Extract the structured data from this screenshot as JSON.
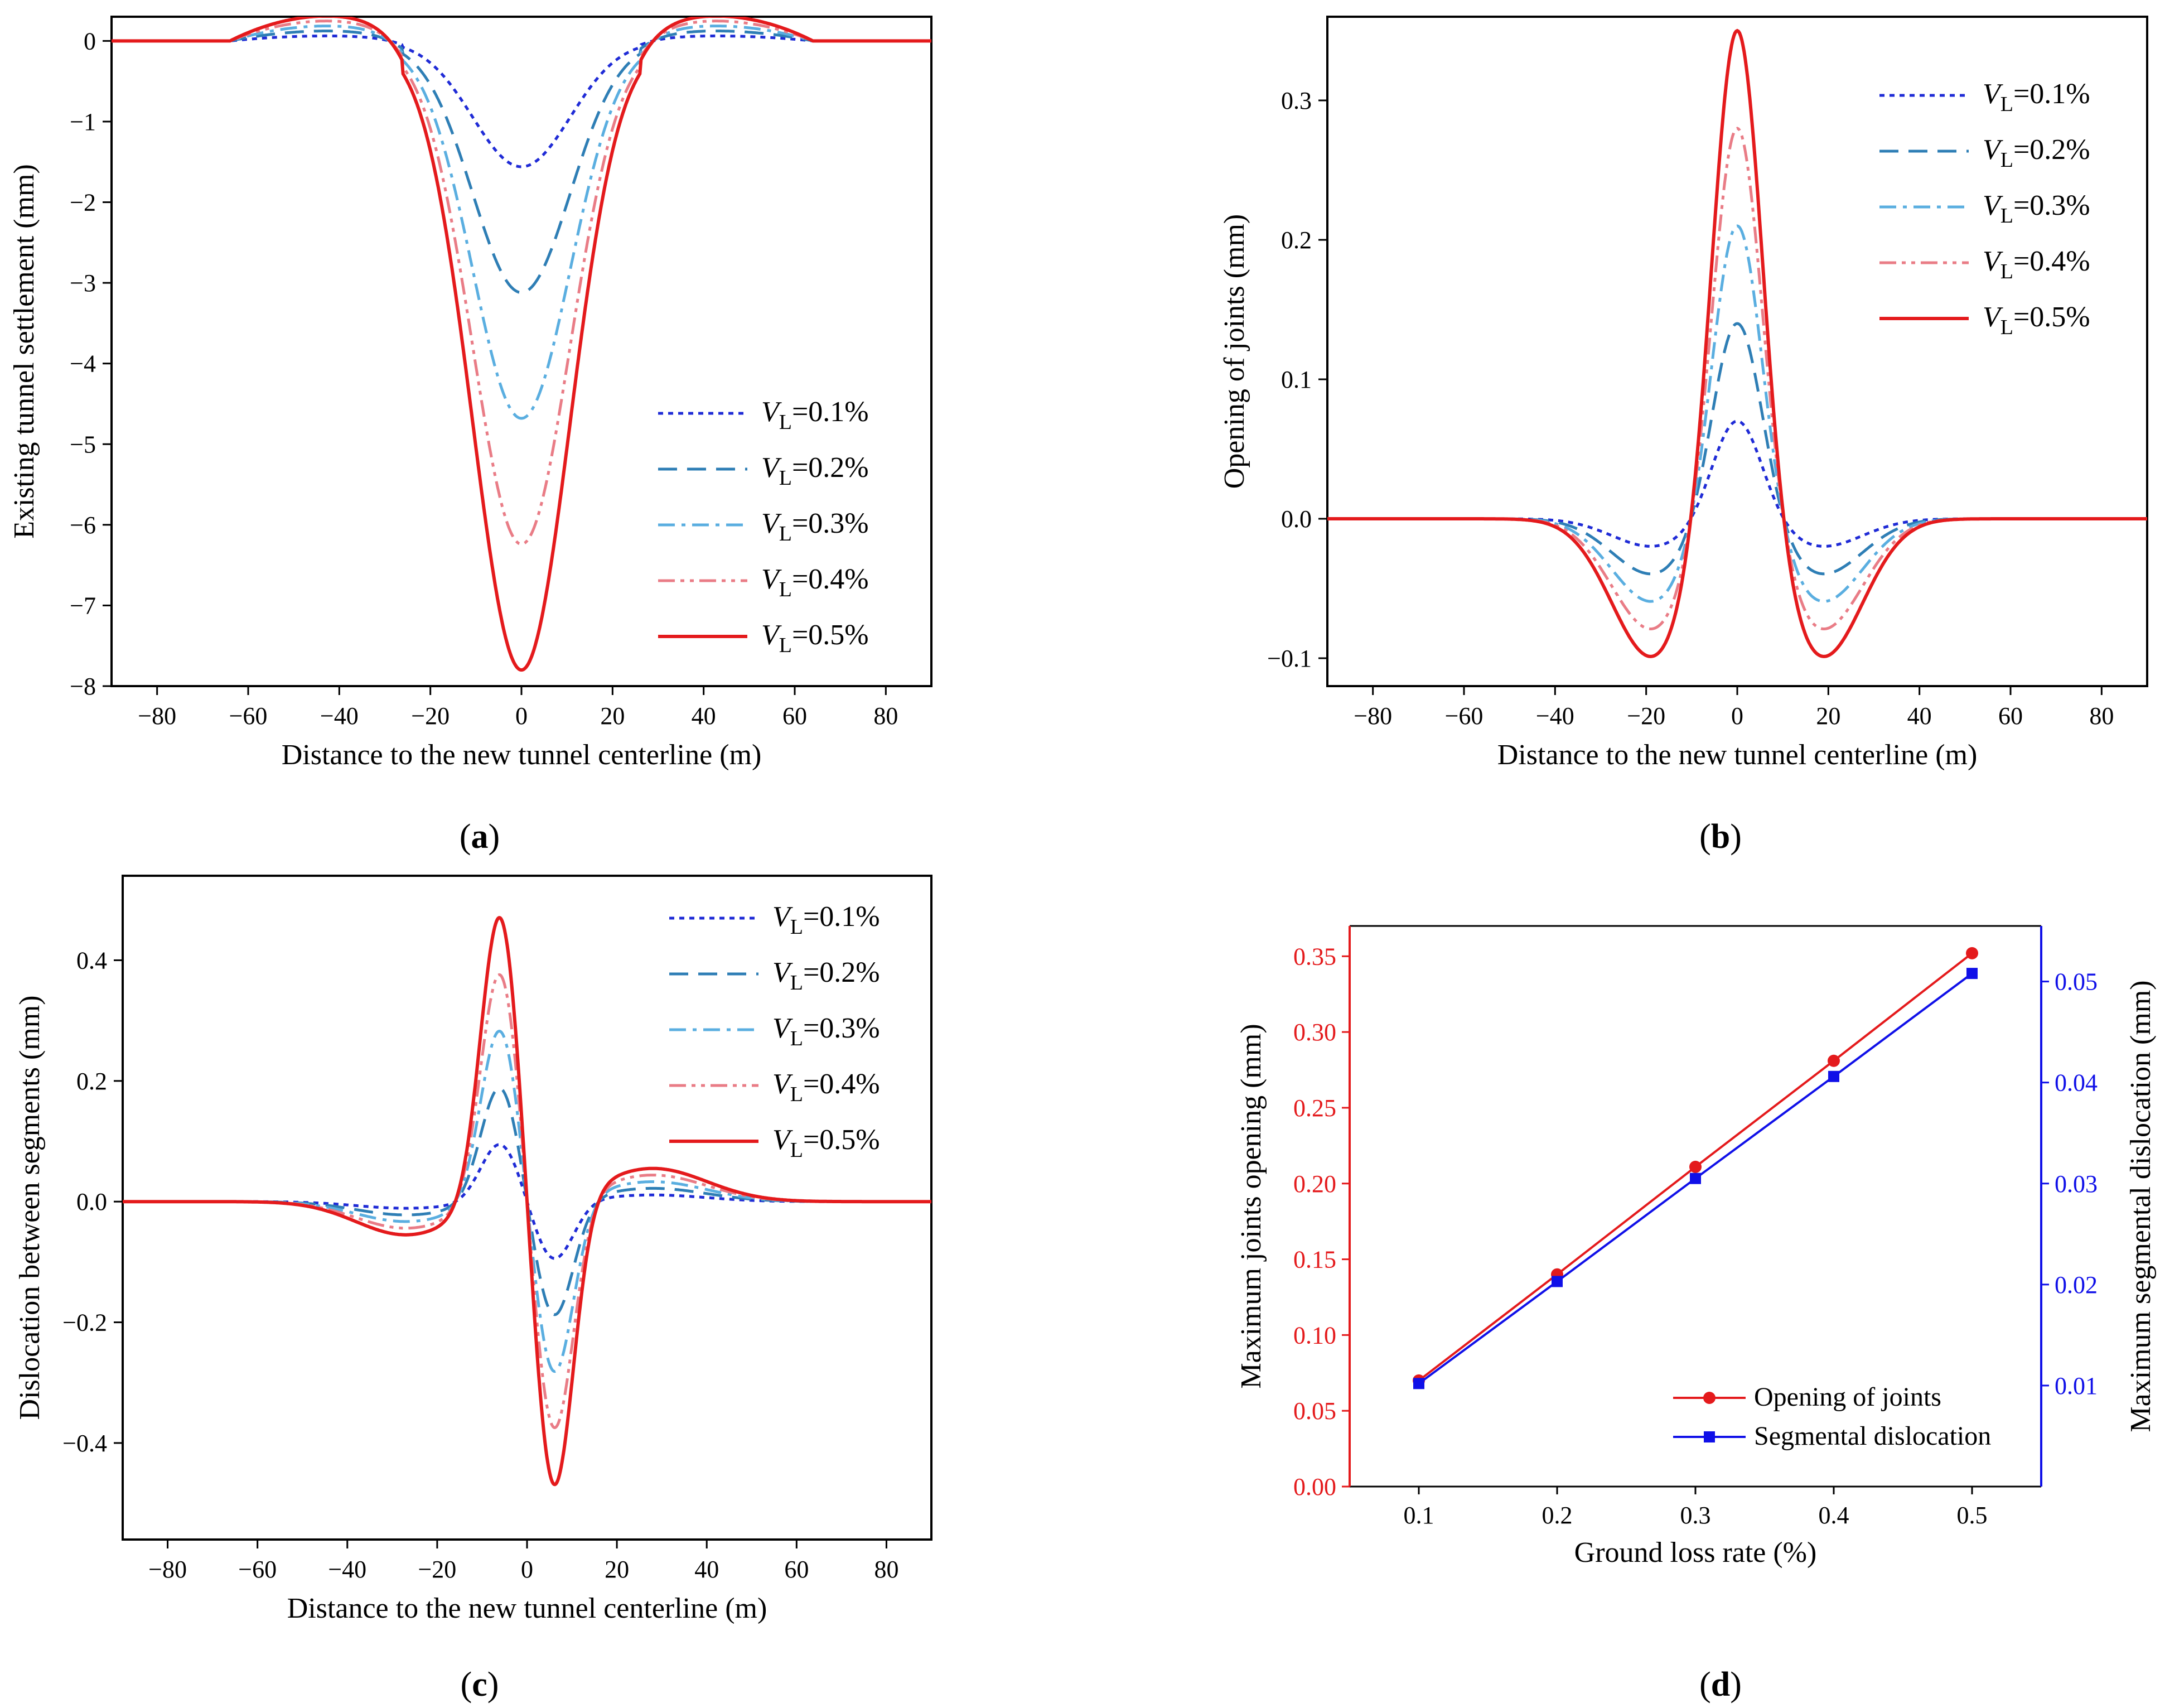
{
  "panel_labels": [
    "a",
    "b",
    "c",
    "d"
  ],
  "colors": {
    "v01": "#1f2bd6",
    "v02": "#2e7eb5",
    "v03": "#5aaee0",
    "v04": "#e97c86",
    "v05": "#e41a1c",
    "opening": "#e41a1c",
    "dislocation": "#1010e8"
  },
  "chart_data": [
    {
      "id": "a",
      "type": "line",
      "xlabel": "Distance to the new tunnel centerline (m)",
      "ylabel": "Existing tunnel settlement (mm)",
      "xlim": [
        -90,
        90
      ],
      "ylim": [
        -8,
        0.3
      ],
      "xticks": [
        -80,
        -60,
        -40,
        -20,
        0,
        20,
        40,
        60,
        80
      ],
      "yticks": [
        0,
        -1,
        -2,
        -3,
        -4,
        -5,
        -6,
        -7,
        -8
      ],
      "legend_position": "lower-right",
      "series": [
        {
          "name": "VL=0.1%",
          "legend_var": "V",
          "legend_sub": "L",
          "legend_val": "=0.1%",
          "style": "dot",
          "color_key": "v01",
          "peak": -1.56
        },
        {
          "name": "VL=0.2%",
          "legend_var": "V",
          "legend_sub": "L",
          "legend_val": "=0.2%",
          "style": "dash",
          "color_key": "v02",
          "peak": -3.12
        },
        {
          "name": "VL=0.3%",
          "legend_var": "V",
          "legend_sub": "L",
          "legend_val": "=0.3%",
          "style": "dashdot",
          "color_key": "v03",
          "peak": -4.68
        },
        {
          "name": "VL=0.4%",
          "legend_var": "V",
          "legend_sub": "L",
          "legend_val": "=0.4%",
          "style": "dashdotdot",
          "color_key": "v04",
          "peak": -6.24
        },
        {
          "name": "VL=0.5%",
          "legend_var": "V",
          "legend_sub": "L",
          "legend_val": "=0.5%",
          "style": "solid",
          "color_key": "v05",
          "peak": -7.8
        }
      ]
    },
    {
      "id": "b",
      "type": "line",
      "xlabel": "Distance to the new tunnel centerline (m)",
      "ylabel": "Opening of joints (mm)",
      "xlim": [
        -90,
        90
      ],
      "ylim": [
        -0.12,
        0.36
      ],
      "xticks": [
        -80,
        -60,
        -40,
        -20,
        0,
        20,
        40,
        60,
        80
      ],
      "yticks": [
        0.3,
        0.2,
        0.1,
        0.0,
        -0.1
      ],
      "ytick_labels": [
        "0.3",
        "0.2",
        "0.1",
        "0.0",
        "-0.1"
      ],
      "legend_position": "upper-right",
      "series": [
        {
          "name": "VL=0.1%",
          "legend_var": "V",
          "legend_sub": "L",
          "legend_val": "=0.1%",
          "style": "dot",
          "color_key": "v01",
          "peak": 0.07,
          "trough": -0.02
        },
        {
          "name": "VL=0.2%",
          "legend_var": "V",
          "legend_sub": "L",
          "legend_val": "=0.2%",
          "style": "dash",
          "color_key": "v02",
          "peak": 0.14,
          "trough": -0.04
        },
        {
          "name": "VL=0.3%",
          "legend_var": "V",
          "legend_sub": "L",
          "legend_val": "=0.3%",
          "style": "dashdot",
          "color_key": "v03",
          "peak": 0.21,
          "trough": -0.06
        },
        {
          "name": "VL=0.4%",
          "legend_var": "V",
          "legend_sub": "L",
          "legend_val": "=0.4%",
          "style": "dashdotdot",
          "color_key": "v04",
          "peak": 0.28,
          "trough": -0.08
        },
        {
          "name": "VL=0.5%",
          "legend_var": "V",
          "legend_sub": "L",
          "legend_val": "=0.5%",
          "style": "solid",
          "color_key": "v05",
          "peak": 0.35,
          "trough": -0.1
        }
      ]
    },
    {
      "id": "c",
      "type": "line",
      "xlabel": "Distance to the new tunnel centerline (m)",
      "ylabel": "Dislocation between segments (mm)",
      "xlim": [
        -90,
        90
      ],
      "ylim": [
        -0.56,
        0.54
      ],
      "xticks": [
        -80,
        -60,
        -40,
        -20,
        0,
        20,
        40,
        60,
        80
      ],
      "yticks": [
        0.4,
        0.2,
        0.0,
        -0.2,
        -0.4
      ],
      "ytick_labels": [
        "0.4",
        "0.2",
        "0.0",
        "-0.2",
        "-0.4"
      ],
      "legend_position": "upper-right",
      "series": [
        {
          "name": "VL=0.1%",
          "legend_var": "V",
          "legend_sub": "L",
          "legend_val": "=0.1%",
          "style": "dot",
          "color_key": "v01",
          "peak": 0.098,
          "side": 0.011
        },
        {
          "name": "VL=0.2%",
          "legend_var": "V",
          "legend_sub": "L",
          "legend_val": "=0.2%",
          "style": "dash",
          "color_key": "v02",
          "peak": 0.195,
          "side": 0.022
        },
        {
          "name": "VL=0.3%",
          "legend_var": "V",
          "legend_sub": "L",
          "legend_val": "=0.3%",
          "style": "dashdot",
          "color_key": "v03",
          "peak": 0.293,
          "side": 0.033
        },
        {
          "name": "VL=0.4%",
          "legend_var": "V",
          "legend_sub": "L",
          "legend_val": "=0.4%",
          "style": "dashdotdot",
          "color_key": "v04",
          "peak": 0.39,
          "side": 0.044
        },
        {
          "name": "VL=0.5%",
          "legend_var": "V",
          "legend_sub": "L",
          "legend_val": "=0.5%",
          "style": "solid",
          "color_key": "v05",
          "peak": 0.488,
          "side": 0.055
        }
      ]
    },
    {
      "id": "d",
      "type": "line",
      "xlabel": "Ground loss rate (%)",
      "ylabel": "Maximum joints  opening (mm)",
      "ylabel_right": "Maximum segmental dislocation (mm)",
      "xlim": [
        0.05,
        0.55
      ],
      "ylim": [
        0.0,
        0.37
      ],
      "ylim_right": [
        0.0,
        0.0555
      ],
      "xticks": [
        0.1,
        0.2,
        0.3,
        0.4,
        0.5
      ],
      "xtick_labels": [
        "0.1",
        "0.2",
        "0.3",
        "0.4",
        "0.5"
      ],
      "yticks": [
        0.0,
        0.05,
        0.1,
        0.15,
        0.2,
        0.25,
        0.3,
        0.35
      ],
      "ytick_labels": [
        "0.00",
        "0.05",
        "0.10",
        "0.15",
        "0.20",
        "0.25",
        "0.30",
        "0.35"
      ],
      "yticks_right": [
        0.01,
        0.02,
        0.03,
        0.04,
        0.05
      ],
      "ytick_labels_right": [
        "0.01",
        "0.02",
        "0.03",
        "0.04",
        "0.05"
      ],
      "legend_position": "lower-right",
      "series": [
        {
          "name": "Opening of joints",
          "axis": "left",
          "marker": "circle",
          "color_key": "opening",
          "x": [
            0.1,
            0.2,
            0.3,
            0.4,
            0.5
          ],
          "y": [
            0.07,
            0.14,
            0.211,
            0.281,
            0.352
          ]
        },
        {
          "name": "Segmental dislocation",
          "axis": "right",
          "marker": "square",
          "color_key": "dislocation",
          "x": [
            0.1,
            0.2,
            0.3,
            0.4,
            0.5
          ],
          "y": [
            0.0102,
            0.0203,
            0.0305,
            0.0406,
            0.0508
          ]
        }
      ]
    }
  ]
}
